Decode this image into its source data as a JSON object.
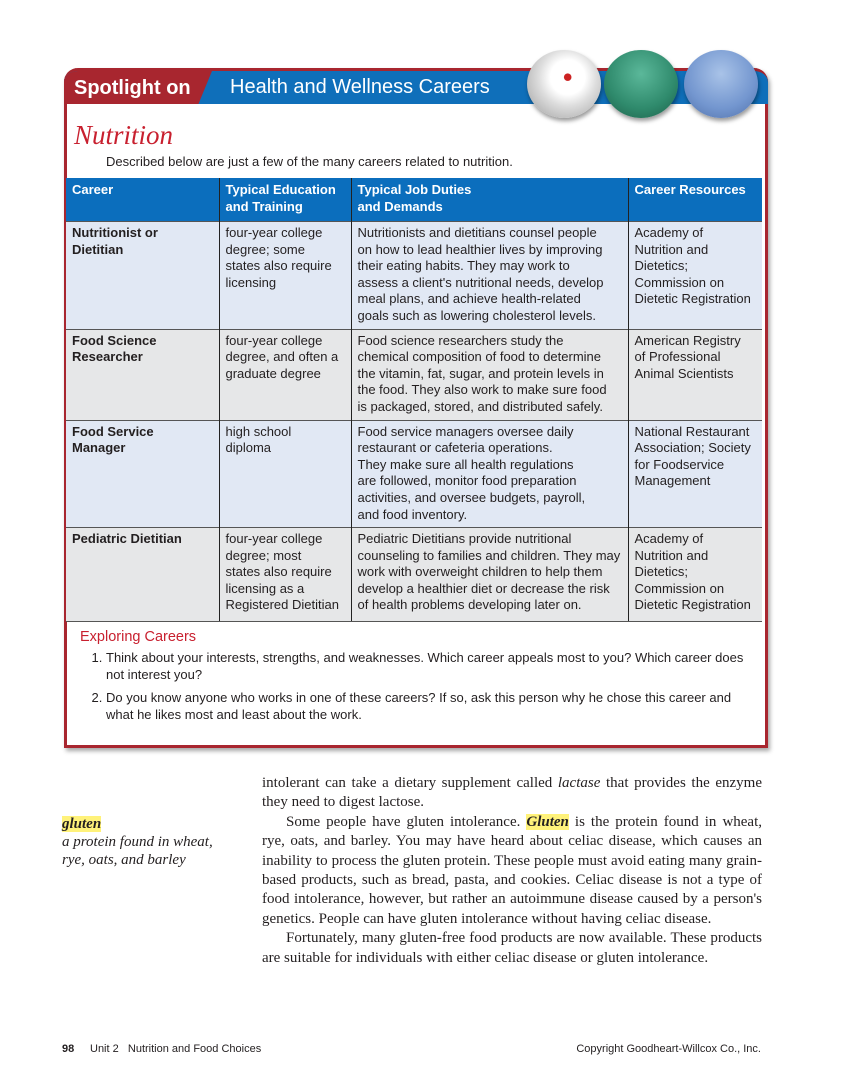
{
  "header": {
    "spotlight": "Spotlight on",
    "title": "Health and Wellness Careers"
  },
  "section": {
    "title": "Nutrition",
    "intro": "Described below are just a few of the many careers related to nutrition."
  },
  "colors": {
    "accent_red": "#a8262f",
    "header_blue": "#0b6ebd",
    "row_blue": "#e1e8f4",
    "row_gray": "#e6e7e8",
    "highlight": "#fff27a"
  },
  "table": {
    "headers": [
      "Career",
      "Typical Education\nand Training",
      "Typical Job Duties\nand Demands",
      "Career Resources"
    ],
    "rows": [
      [
        "Nutritionist or\nDietitian",
        "four-year college\ndegree; some\nstates also require\nlicensing",
        "Nutritionists and dietitians counsel people\non how to lead healthier lives by improving\ntheir eating habits. They may work to\nassess a client's nutritional needs, develop\nmeal plans, and achieve health-related\ngoals such as lowering cholesterol levels.",
        "Academy of\nNutrition and\nDietetics;\nCommission on\nDietetic Registration"
      ],
      [
        "Food Science\nResearcher",
        "four-year college\ndegree, and often a\ngraduate degree",
        "Food science researchers study the\nchemical composition of food to determine\nthe vitamin, fat, sugar, and protein levels in\nthe food. They also work to make sure food\nis packaged, stored, and distributed safely.",
        "American Registry\nof Professional\nAnimal Scientists"
      ],
      [
        "Food Service\nManager",
        "high school\ndiploma",
        "Food service managers oversee daily\nrestaurant or cafeteria operations.\nThey make sure all health regulations\nare followed, monitor food preparation\nactivities, and oversee budgets, payroll,\nand food inventory.",
        "National Restaurant\nAssociation; Society\nfor Foodservice\nManagement"
      ],
      [
        "Pediatric Dietitian",
        "four-year college\ndegree; most\nstates also require\nlicensing as a\nRegistered Dietitian",
        "Pediatric Dietitians provide nutritional\ncounseling to families and children. They may\nwork with overweight children to help them\ndevelop a healthier diet or decrease the risk\nof health problems developing later on.",
        "Academy of\nNutrition and\nDietetics;\nCommission on\nDietetic Registration"
      ]
    ]
  },
  "exploring": {
    "title": "Exploring Careers",
    "items": [
      "Think about your interests, strengths, and weaknesses. Which career appeals most to you? Which career does not interest you?",
      "Do you know anyone who works in one of these careers? If so, ask this person why he chose this career and what he likes most and least about the work."
    ]
  },
  "margin_note": {
    "term": "gluten",
    "definition": "a protein found in wheat, rye, oats, and barley"
  },
  "body": {
    "p1": {
      "a": "intolerant can take a dietary supplement called ",
      "i": "lactase",
      "b": " that provides the enzyme they need to digest lactose."
    },
    "p2": {
      "a": "Some people have gluten intolerance. ",
      "term": "Gluten",
      "b": " is the protein found in wheat, rye, oats, and barley. You may have heard about celiac disease, which causes an inability to process the gluten protein. These people must avoid eating many grain-based products, such as bread, pasta, and cookies. Celiac disease is not a type of food intolerance, however, but rather an autoimmune disease caused by a person's genetics. People can have gluten intolerance without having celiac disease."
    },
    "p3": "Fortunately, many gluten-free food products are now available. These products are suitable for individuals with either celiac disease or gluten intolerance."
  },
  "footer": {
    "page": "98",
    "unit": "Unit 2   Nutrition and Food Choices",
    "copyright": "Copyright Goodheart-Willcox Co., Inc."
  }
}
